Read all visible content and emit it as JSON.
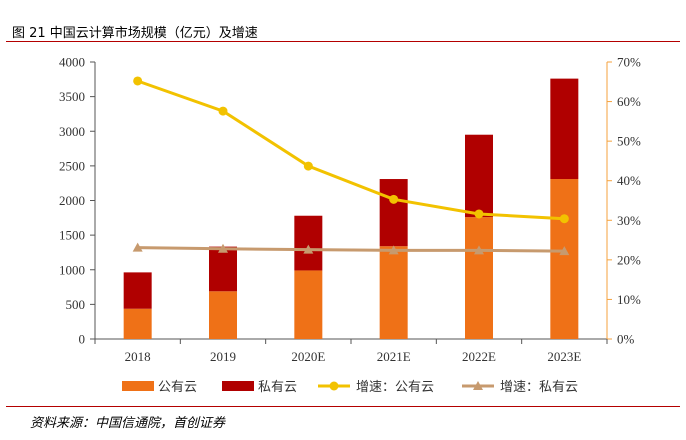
{
  "header": {
    "title": "图 21 中国云计算市场规模（亿元）及增速"
  },
  "footer": {
    "source": "资料来源：中国信通院，首创证券"
  },
  "colors": {
    "public": "#ef7117",
    "private": "#b00000",
    "public_growth": "#f2c200",
    "private_growth": "#c79a6e",
    "rule": "#b40000",
    "axis_right": "#f5a23c"
  },
  "chart_data": {
    "type": "bar",
    "stacked": true,
    "categories": [
      "2018",
      "2019",
      "2020E",
      "2021E",
      "2022E",
      "2023E"
    ],
    "series": [
      {
        "name": "公有云",
        "kind": "bar",
        "axis": "left",
        "values": [
          437,
          689,
          990,
          1340,
          1760,
          2310
        ]
      },
      {
        "name": "私有云",
        "kind": "bar",
        "axis": "left",
        "values": [
          525,
          645,
          790,
          970,
          1190,
          1450
        ]
      },
      {
        "name": "增速：公有云",
        "kind": "line",
        "axis": "right",
        "values": [
          65.2,
          57.6,
          43.7,
          35.3,
          31.6,
          30.4
        ]
      },
      {
        "name": "增速：私有云",
        "kind": "line",
        "axis": "right",
        "values": [
          23.1,
          22.8,
          22.6,
          22.4,
          22.4,
          22.2
        ]
      }
    ],
    "ylim_left": [
      0,
      4000
    ],
    "yticks_left": [
      "0",
      "500",
      "1000",
      "1500",
      "2000",
      "2500",
      "3000",
      "3500",
      "4000"
    ],
    "ylim_right": [
      0,
      70
    ],
    "yticks_right": [
      "0%",
      "10%",
      "20%",
      "30%",
      "40%",
      "50%",
      "60%",
      "70%"
    ],
    "legend_position": "bottom",
    "grid": false
  }
}
